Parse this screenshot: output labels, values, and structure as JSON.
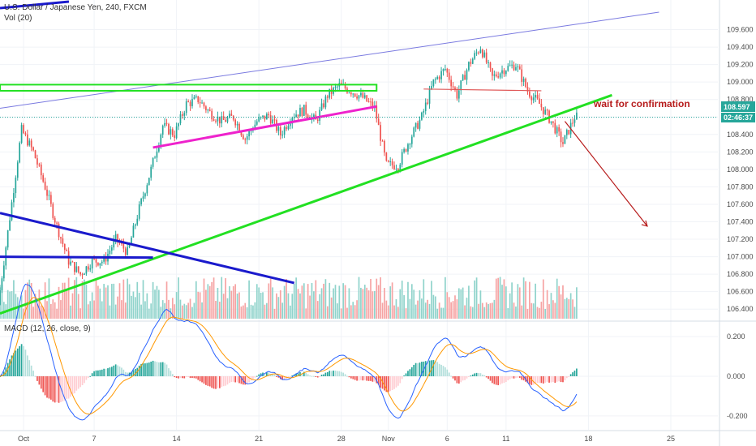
{
  "header": {
    "symbol_title": "U.S. Dollar / Japanese Yen, 240, FXCM",
    "volume_label": "Vol (20)",
    "macd_label": "MACD (12, 26, close, 9)"
  },
  "price_label": {
    "value": "108.597",
    "countdown": "02:46:37"
  },
  "annotation": {
    "text": "wait for confirmation"
  },
  "colors": {
    "up": "#26a69a",
    "down": "#ef5350",
    "vol_up": "#8fd3cb",
    "vol_down": "#f6a3a3",
    "macd_line": "#2962ff",
    "signal_line": "#ff9800",
    "support_green": "#22e022",
    "blue_trend": "#1a1acc",
    "magenta": "#ee22cc",
    "annot_red": "#b71c1c",
    "price_box": "#26a69a"
  },
  "chart_data": [
    {
      "type": "candlestick",
      "title": "U.S. Dollar / Japanese Yen, 240, FXCM",
      "ylim": [
        106.3,
        109.8
      ],
      "y_ticks": [
        "109.600",
        "109.400",
        "109.200",
        "109.000",
        "108.800",
        "108.600",
        "108.400",
        "108.200",
        "108.000",
        "107.800",
        "107.600",
        "107.400",
        "107.200",
        "107.000",
        "106.800",
        "106.600",
        "106.400"
      ],
      "x_ticks": [
        "Oct",
        "7",
        "14",
        "21",
        "28",
        "Nov",
        "6",
        "11",
        "18",
        "25"
      ],
      "grid": true,
      "anchors": [
        [
          "2018-09-29",
          106.45
        ],
        [
          "2018-10-01",
          108.45
        ],
        [
          "2018-10-02",
          108.2
        ],
        [
          "2018-10-03",
          107.8
        ],
        [
          "2018-10-04",
          107.35
        ],
        [
          "2018-10-05",
          106.95
        ],
        [
          "2018-10-06",
          106.8
        ],
        [
          "2018-10-07",
          106.95
        ],
        [
          "2018-10-08",
          106.95
        ],
        [
          "2018-10-09",
          107.2
        ],
        [
          "2018-10-10",
          107.05
        ],
        [
          "2018-10-11",
          107.55
        ],
        [
          "2018-10-12",
          108.0
        ],
        [
          "2018-10-13",
          108.5
        ],
        [
          "2018-10-14",
          108.4
        ],
        [
          "2018-10-15",
          108.75
        ],
        [
          "2018-10-16",
          108.8
        ],
        [
          "2018-10-17",
          108.65
        ],
        [
          "2018-10-18",
          108.55
        ],
        [
          "2018-10-19",
          108.6
        ],
        [
          "2018-10-20",
          108.35
        ],
        [
          "2018-10-21",
          108.55
        ],
        [
          "2018-10-22",
          108.62
        ],
        [
          "2018-10-23",
          108.4
        ],
        [
          "2018-10-24",
          108.62
        ],
        [
          "2018-10-25",
          108.68
        ],
        [
          "2018-10-26",
          108.55
        ],
        [
          "2018-10-27",
          108.85
        ],
        [
          "2018-10-28",
          108.96
        ],
        [
          "2018-10-29",
          108.9
        ],
        [
          "2018-10-30",
          108.82
        ],
        [
          "2018-10-31",
          108.7
        ],
        [
          "2018-11-01",
          108.05
        ],
        [
          "2018-11-02",
          108.05
        ],
        [
          "2018-11-03",
          108.35
        ],
        [
          "2018-11-04",
          108.6
        ],
        [
          "2018-11-05",
          109.0
        ],
        [
          "2018-11-06",
          109.15
        ],
        [
          "2018-11-07",
          108.85
        ],
        [
          "2018-11-08",
          109.2
        ],
        [
          "2018-11-09",
          109.4
        ],
        [
          "2018-11-10",
          109.05
        ],
        [
          "2018-11-11",
          109.15
        ],
        [
          "2018-11-12",
          109.2
        ],
        [
          "2018-11-13",
          108.9
        ],
        [
          "2018-11-14",
          108.75
        ],
        [
          "2018-11-15",
          108.55
        ],
        [
          "2018-11-16",
          108.3
        ],
        [
          "2018-11-17",
          108.6
        ]
      ]
    },
    {
      "type": "bar",
      "title": "Vol (20)"
    },
    {
      "type": "line",
      "title": "MACD (12, 26, close, 9)",
      "ylim": [
        -0.27,
        0.27
      ],
      "y_ticks": [
        "0.200",
        "0.000",
        "-0.200"
      ]
    }
  ]
}
